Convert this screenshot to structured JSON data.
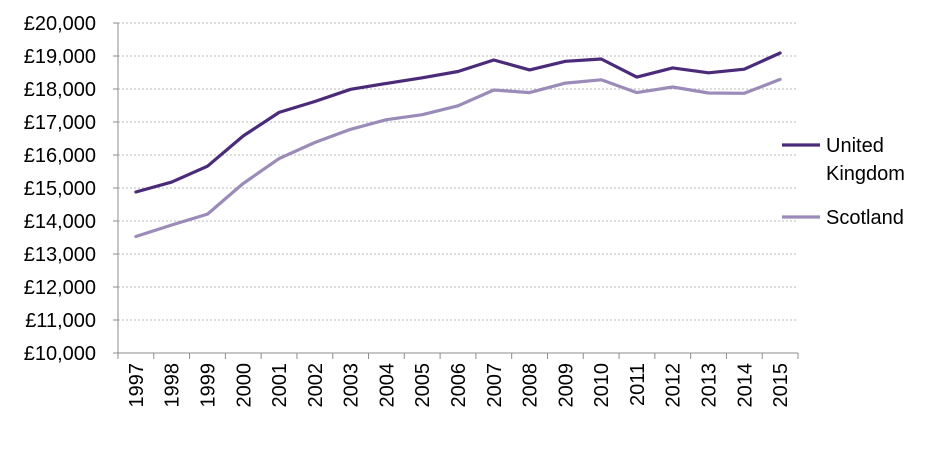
{
  "chart_data": {
    "type": "line",
    "title": "",
    "xlabel": "",
    "ylabel": "",
    "categories": [
      "1997",
      "1998",
      "1999",
      "2000",
      "2001",
      "2002",
      "2003",
      "2004",
      "2005",
      "2006",
      "2007",
      "2008",
      "2009",
      "2010",
      "2011",
      "2012",
      "2013",
      "2014",
      "2015"
    ],
    "ylim": [
      10000,
      20000
    ],
    "yticks": [
      10000,
      11000,
      12000,
      13000,
      14000,
      15000,
      16000,
      17000,
      18000,
      19000,
      20000
    ],
    "ytick_labels": [
      "£10,000",
      "£11,000",
      "£12,000",
      "£13,000",
      "£14,000",
      "£15,000",
      "£16,000",
      "£17,000",
      "£18,000",
      "£19,000",
      "£20,000"
    ],
    "grid": true,
    "legend_position": "right",
    "series": [
      {
        "name": "United Kingdom",
        "legend_lines": [
          "United",
          "Kingdom"
        ],
        "color": "#4b2a7a",
        "values": [
          14880,
          15180,
          15660,
          16580,
          17290,
          17620,
          17990,
          18170,
          18340,
          18530,
          18880,
          18580,
          18840,
          18910,
          18360,
          18640,
          18490,
          18600,
          19090
        ]
      },
      {
        "name": "Scotland",
        "legend_lines": [
          "Scotland"
        ],
        "color": "#9b8bb8",
        "values": [
          13530,
          13880,
          14210,
          15140,
          15890,
          16380,
          16780,
          17070,
          17220,
          17490,
          17970,
          17890,
          18180,
          18280,
          17890,
          18060,
          17880,
          17870,
          18290
        ]
      }
    ]
  }
}
